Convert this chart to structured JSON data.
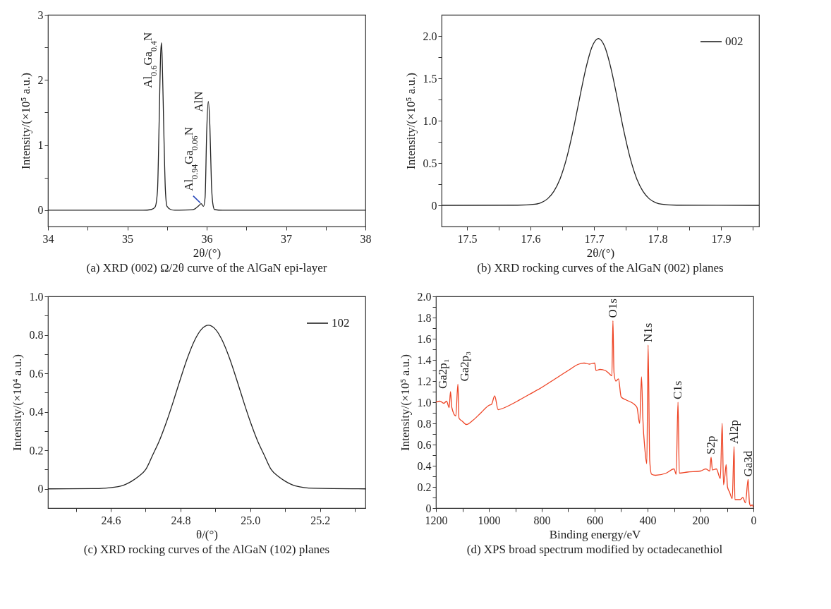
{
  "chart_data": [
    {
      "type": "line",
      "title": "(a) XRD (002) Ω/2θ curve of the AlGaN epi-layer",
      "xlabel": "2θ/(°)",
      "ylabel": "Intensity/(×10⁵ a.u.)",
      "xlim": [
        34,
        38
      ],
      "xticks": [
        34,
        {
          "value": 34.5,
          "label": null
        },
        35,
        {
          "value": 35.5,
          "label": null
        },
        36,
        {
          "value": 36.5,
          "label": null
        },
        37,
        {
          "value": 37.5,
          "label": null
        },
        38
      ],
      "ylim": [
        -0.25,
        3
      ],
      "yticks": [
        0,
        {
          "value": 0.5,
          "label": null
        },
        1,
        {
          "value": 1.5,
          "label": null
        },
        2,
        {
          "value": 2.5,
          "label": null
        },
        3
      ],
      "series": [
        {
          "color": "#222222",
          "x": [
            34,
            35.2,
            35.3,
            35.35,
            35.38,
            35.4,
            35.42,
            35.43,
            35.44,
            35.46,
            35.48,
            35.5,
            35.55,
            35.6,
            35.8,
            35.85,
            35.9,
            35.93,
            35.96,
            35.98,
            36.0,
            36.02,
            36.04,
            36.06,
            36.08,
            36.1,
            36.2,
            38
          ],
          "values": [
            0,
            0,
            0.01,
            0.05,
            0.3,
            1.3,
            2.4,
            2.57,
            2.3,
            1.2,
            0.3,
            0.06,
            0.01,
            0,
            0.005,
            0.02,
            0.07,
            0.1,
            0.06,
            0.2,
            1.2,
            1.67,
            1.3,
            0.4,
            0.08,
            0.01,
            0,
            0
          ]
        }
      ],
      "annotations": [
        {
          "text": "Al$_{0.6}$Ga$_{0.4}$N",
          "x": 35.43,
          "y": 2.57
        },
        {
          "text": "AlN",
          "x": 36.02,
          "y": 1.67
        },
        {
          "text": "Al$_{0.94}$Ga$_{0.06}$N",
          "x": 35.93,
          "y": 0.1
        }
      ]
    },
    {
      "type": "line",
      "title": "(b) XRD rocking curves of the AlGaN (002) planes",
      "xlabel": "2θ/(°)",
      "ylabel": "Intensity/(×10⁵ a.u.)",
      "legend": "top right",
      "xlim": [
        17.46,
        17.96
      ],
      "xticks": [
        17.5,
        {
          "value": 17.55,
          "label": null
        },
        17.6,
        {
          "value": 17.65,
          "label": null
        },
        17.7,
        {
          "value": 17.75,
          "label": null
        },
        17.8,
        {
          "value": 17.85,
          "label": null
        },
        17.9,
        {
          "value": 17.95,
          "label": null
        }
      ],
      "ylim": [
        -0.25,
        2.25
      ],
      "yticks": [
        0,
        {
          "value": 0.25,
          "label": null
        },
        0.5,
        {
          "value": 0.75,
          "label": null
        },
        {
          "value": 1,
          "label": "1.0"
        },
        {
          "value": 1.25,
          "label": null
        },
        1.5,
        {
          "value": 1.75,
          "label": null
        },
        {
          "value": 2,
          "label": "2.0"
        }
      ],
      "series": [
        {
          "name": "002",
          "color": "#222222",
          "x": [
            17.46,
            17.58,
            17.607,
            17.617,
            17.627,
            17.637,
            17.647,
            17.657,
            17.667,
            17.677,
            17.687,
            17.697,
            17.707,
            17.717,
            17.727,
            17.737,
            17.747,
            17.757,
            17.767,
            17.777,
            17.787,
            17.797,
            17.807,
            17.83,
            17.96
          ],
          "values": [
            0,
            0.002,
            0.013,
            0.033,
            0.078,
            0.167,
            0.321,
            0.559,
            0.88,
            1.252,
            1.61,
            1.873,
            1.97,
            1.873,
            1.61,
            1.252,
            0.88,
            0.559,
            0.321,
            0.167,
            0.078,
            0.033,
            0.013,
            0.002,
            0
          ]
        }
      ]
    },
    {
      "type": "line",
      "title": "(c) XRD rocking curves of the AlGaN (102) planes",
      "xlabel": "θ/(°)",
      "ylabel": "Intensity/(×10⁴ a.u.)",
      "legend": "top right",
      "xlim": [
        24.42,
        25.33
      ],
      "xticks": [
        {
          "value": 24.5,
          "label": null
        },
        24.6,
        {
          "value": 24.7,
          "label": null
        },
        24.8,
        {
          "value": 24.9,
          "label": null
        },
        {
          "value": 25,
          "label": "25.0"
        },
        {
          "value": 25.1,
          "label": null
        },
        25.2,
        {
          "value": 25.3,
          "label": null
        }
      ],
      "ylim": [
        -0.1,
        1
      ],
      "yticks": [
        0,
        {
          "value": 0.1,
          "label": null
        },
        0.2,
        {
          "value": 0.3,
          "label": null
        },
        0.4,
        {
          "value": 0.5,
          "label": null
        },
        0.6,
        {
          "value": 0.7,
          "label": null
        },
        0.8,
        {
          "value": 0.9,
          "label": null
        },
        {
          "value": 1,
          "label": "1.0"
        }
      ],
      "series": [
        {
          "name": "102",
          "color": "#222222",
          "x": [
            24.42,
            24.55,
            24.58,
            24.63,
            24.66,
            24.68,
            24.7,
            24.72,
            24.74,
            24.76,
            24.78,
            24.8,
            24.82,
            24.84,
            24.86,
            24.88,
            24.9,
            24.92,
            24.94,
            24.96,
            24.98,
            25.0,
            25.02,
            25.04,
            25.06,
            25.08,
            25.1,
            25.13,
            25.18,
            25.33
          ],
          "values": [
            0,
            0.001,
            0.003,
            0.015,
            0.04,
            0.065,
            0.1,
            0.175,
            0.253,
            0.349,
            0.458,
            0.573,
            0.681,
            0.77,
            0.829,
            0.85,
            0.829,
            0.77,
            0.681,
            0.573,
            0.458,
            0.349,
            0.253,
            0.175,
            0.1,
            0.065,
            0.04,
            0.015,
            0.003,
            0
          ]
        }
      ]
    },
    {
      "type": "line",
      "title": "(d) XPS  broad spectrum modified by octadecanethiol",
      "xlabel": "Binding energy/eV",
      "ylabel": "Intensity/(×10⁵ a.u.)",
      "xlim": [
        1200,
        0
      ],
      "xticks": [
        1200,
        {
          "value": 1100,
          "label": null
        },
        1000,
        {
          "value": 900,
          "label": null
        },
        800,
        {
          "value": 700,
          "label": null
        },
        600,
        {
          "value": 500,
          "label": null
        },
        400,
        {
          "value": 300,
          "label": null
        },
        200,
        {
          "value": 100,
          "label": null
        },
        0
      ],
      "ylim": [
        0,
        2
      ],
      "yticks": [
        0,
        {
          "value": 0.1,
          "label": null
        },
        0.2,
        {
          "value": 0.3,
          "label": null
        },
        0.4,
        {
          "value": 0.5,
          "label": null
        },
        0.6,
        {
          "value": 0.7,
          "label": null
        },
        0.8,
        {
          "value": 0.9,
          "label": null
        },
        {
          "value": 1,
          "label": "1.0"
        },
        {
          "value": 1.1,
          "label": null
        },
        1.2,
        {
          "value": 1.3,
          "label": null
        },
        1.4,
        {
          "value": 1.5,
          "label": null
        },
        1.6,
        {
          "value": 1.7,
          "label": null
        },
        1.8,
        {
          "value": 1.9,
          "label": null
        },
        {
          "value": 2,
          "label": "2.0"
        }
      ],
      "series": [
        {
          "color": "#ee4324",
          "x": [
            1200,
            1185,
            1170,
            1160,
            1150,
            1145,
            1140,
            1125,
            1117,
            1113,
            1100,
            1085,
            1060,
            1030,
            1000,
            990,
            978,
            965,
            950,
            900,
            850,
            800,
            750,
            700,
            660,
            640,
            620,
            600,
            595,
            580,
            560,
            545,
            535,
            531,
            527,
            520,
            510,
            500,
            480,
            450,
            440,
            430,
            423,
            418,
            410,
            403,
            398,
            392,
            385,
            370,
            330,
            300,
            292,
            285,
            280,
            250,
            200,
            180,
            165,
            160,
            155,
            140,
            125,
            118,
            113,
            108,
            103,
            98,
            90,
            80,
            73,
            70,
            50,
            40,
            30,
            20,
            15,
            10,
            5,
            0
          ],
          "values": [
            1.0,
            1.01,
            0.99,
            1.01,
            0.95,
            1.1,
            0.95,
            0.87,
            1.17,
            0.85,
            0.82,
            0.79,
            0.83,
            0.9,
            0.97,
            0.98,
            1.06,
            0.93,
            0.94,
            1.0,
            1.07,
            1.14,
            1.22,
            1.3,
            1.36,
            1.37,
            1.36,
            1.37,
            1.3,
            1.31,
            1.3,
            1.27,
            1.25,
            1.77,
            1.28,
            1.2,
            1.22,
            1.05,
            1.02,
            0.98,
            0.95,
            0.8,
            1.24,
            0.85,
            0.55,
            0.42,
            1.54,
            0.45,
            0.32,
            0.31,
            0.33,
            0.37,
            0.32,
            1.0,
            0.33,
            0.34,
            0.35,
            0.37,
            0.35,
            0.48,
            0.36,
            0.37,
            0.28,
            0.8,
            0.22,
            0.3,
            0.41,
            0.2,
            0.15,
            0.09,
            0.58,
            0.08,
            0.08,
            0.1,
            0.05,
            0.27,
            0.05,
            0.02,
            0.03,
            0.01
          ]
        }
      ],
      "annotations": [
        {
          "text": "Ga2p₁",
          "x": 1145,
          "y": 1.1
        },
        {
          "text": "Ga2p₃",
          "x": 1117,
          "y": 1.17
        },
        {
          "text": "O1s",
          "x": 531,
          "y": 1.77
        },
        {
          "text": "N1s",
          "x": 398,
          "y": 1.54
        },
        {
          "text": "C1s",
          "x": 285,
          "y": 1.0
        },
        {
          "text": "S2p",
          "x": 160,
          "y": 0.48
        },
        {
          "text": "Al2p",
          "x": 73,
          "y": 0.58
        },
        {
          "text": "Ga3d",
          "x": 20,
          "y": 0.27
        }
      ]
    }
  ]
}
